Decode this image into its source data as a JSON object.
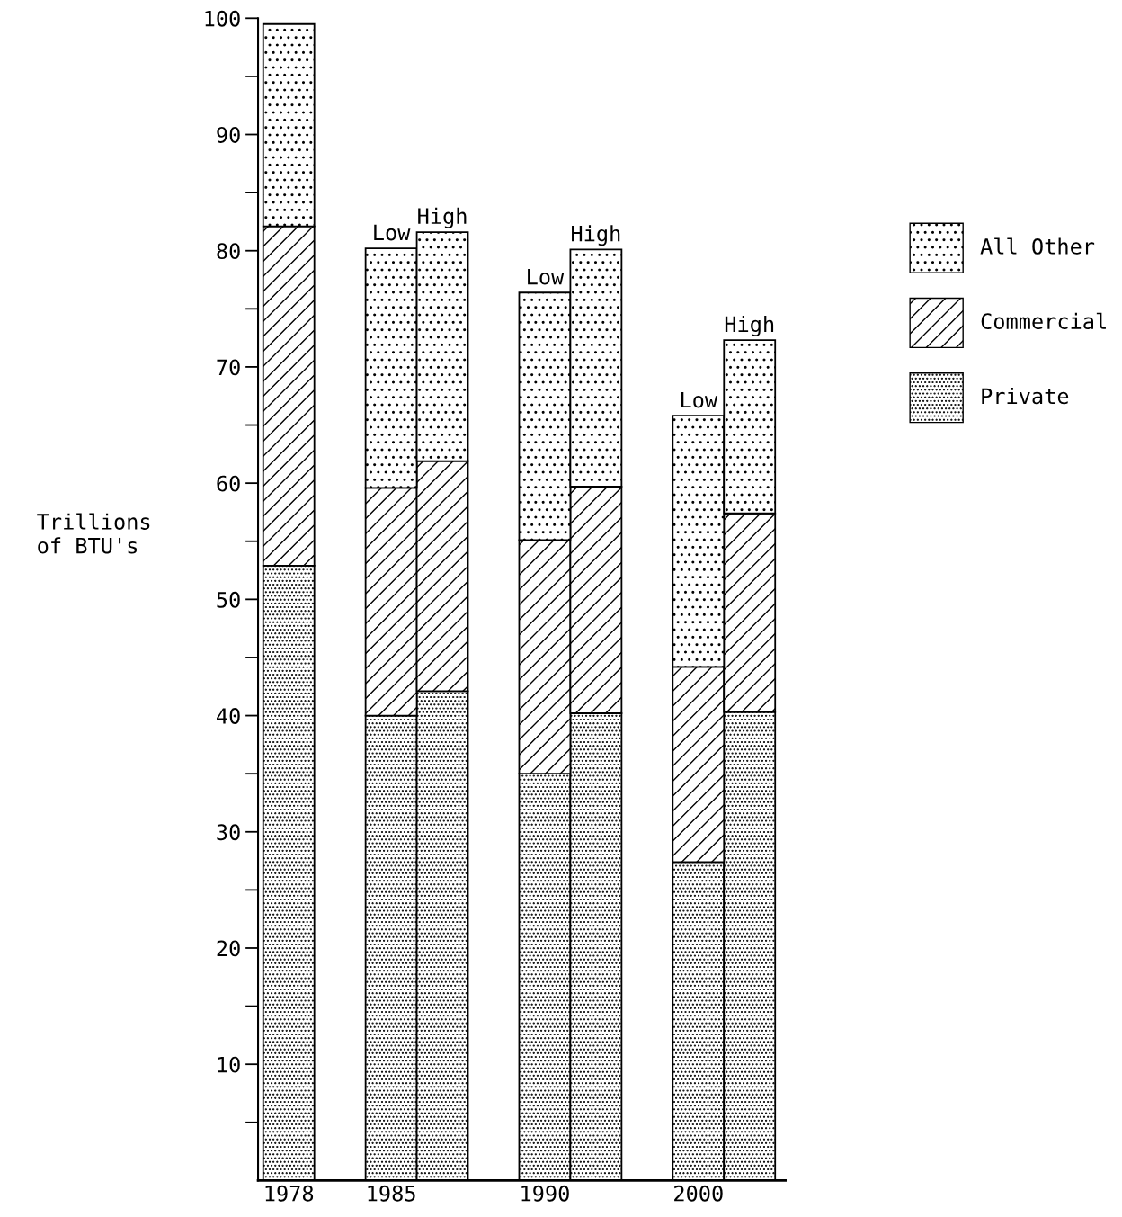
{
  "chart_data": {
    "type": "bar",
    "stacked": true,
    "ylabel": "Trillions\nof BTU's",
    "categories": [
      "1978",
      null,
      "1985",
      null,
      null,
      "1990",
      null,
      null,
      "2000",
      null
    ],
    "series": [
      {
        "name": "Private",
        "color": "#000000",
        "values": [
          52.9,
          null,
          40,
          42.1,
          null,
          35,
          40.2,
          null,
          27.4,
          40.3
        ]
      },
      {
        "name": "Commercial",
        "color": "#000000",
        "values": [
          29.2,
          null,
          19.6,
          19.8,
          null,
          20.1,
          19.5,
          null,
          16.8,
          17.1
        ]
      },
      {
        "name": "All Other",
        "color": "#000000",
        "values": [
          17.4,
          null,
          20.6,
          19.7,
          null,
          21.3,
          20.4,
          null,
          21.6,
          14.9
        ],
        "value_labels": [
          null,
          null,
          "Low",
          "High",
          null,
          "Low",
          "High",
          null,
          "Low",
          "High"
        ]
      }
    ],
    "ylim": [
      0,
      100
    ],
    "yticks": [
      {
        "value": 5,
        "label": null
      },
      10,
      {
        "value": 15,
        "label": null
      },
      20,
      {
        "value": 25,
        "label": null
      },
      30,
      {
        "value": 35,
        "label": null
      },
      40,
      {
        "value": 45,
        "label": null
      },
      50,
      {
        "value": 55,
        "label": null
      },
      60,
      {
        "value": 65,
        "label": null
      },
      70,
      {
        "value": 75,
        "label": null
      },
      80,
      {
        "value": 85,
        "label": null
      },
      90,
      {
        "value": 95,
        "label": null
      },
      100
    ],
    "grid": false,
    "legend": "right"
  }
}
